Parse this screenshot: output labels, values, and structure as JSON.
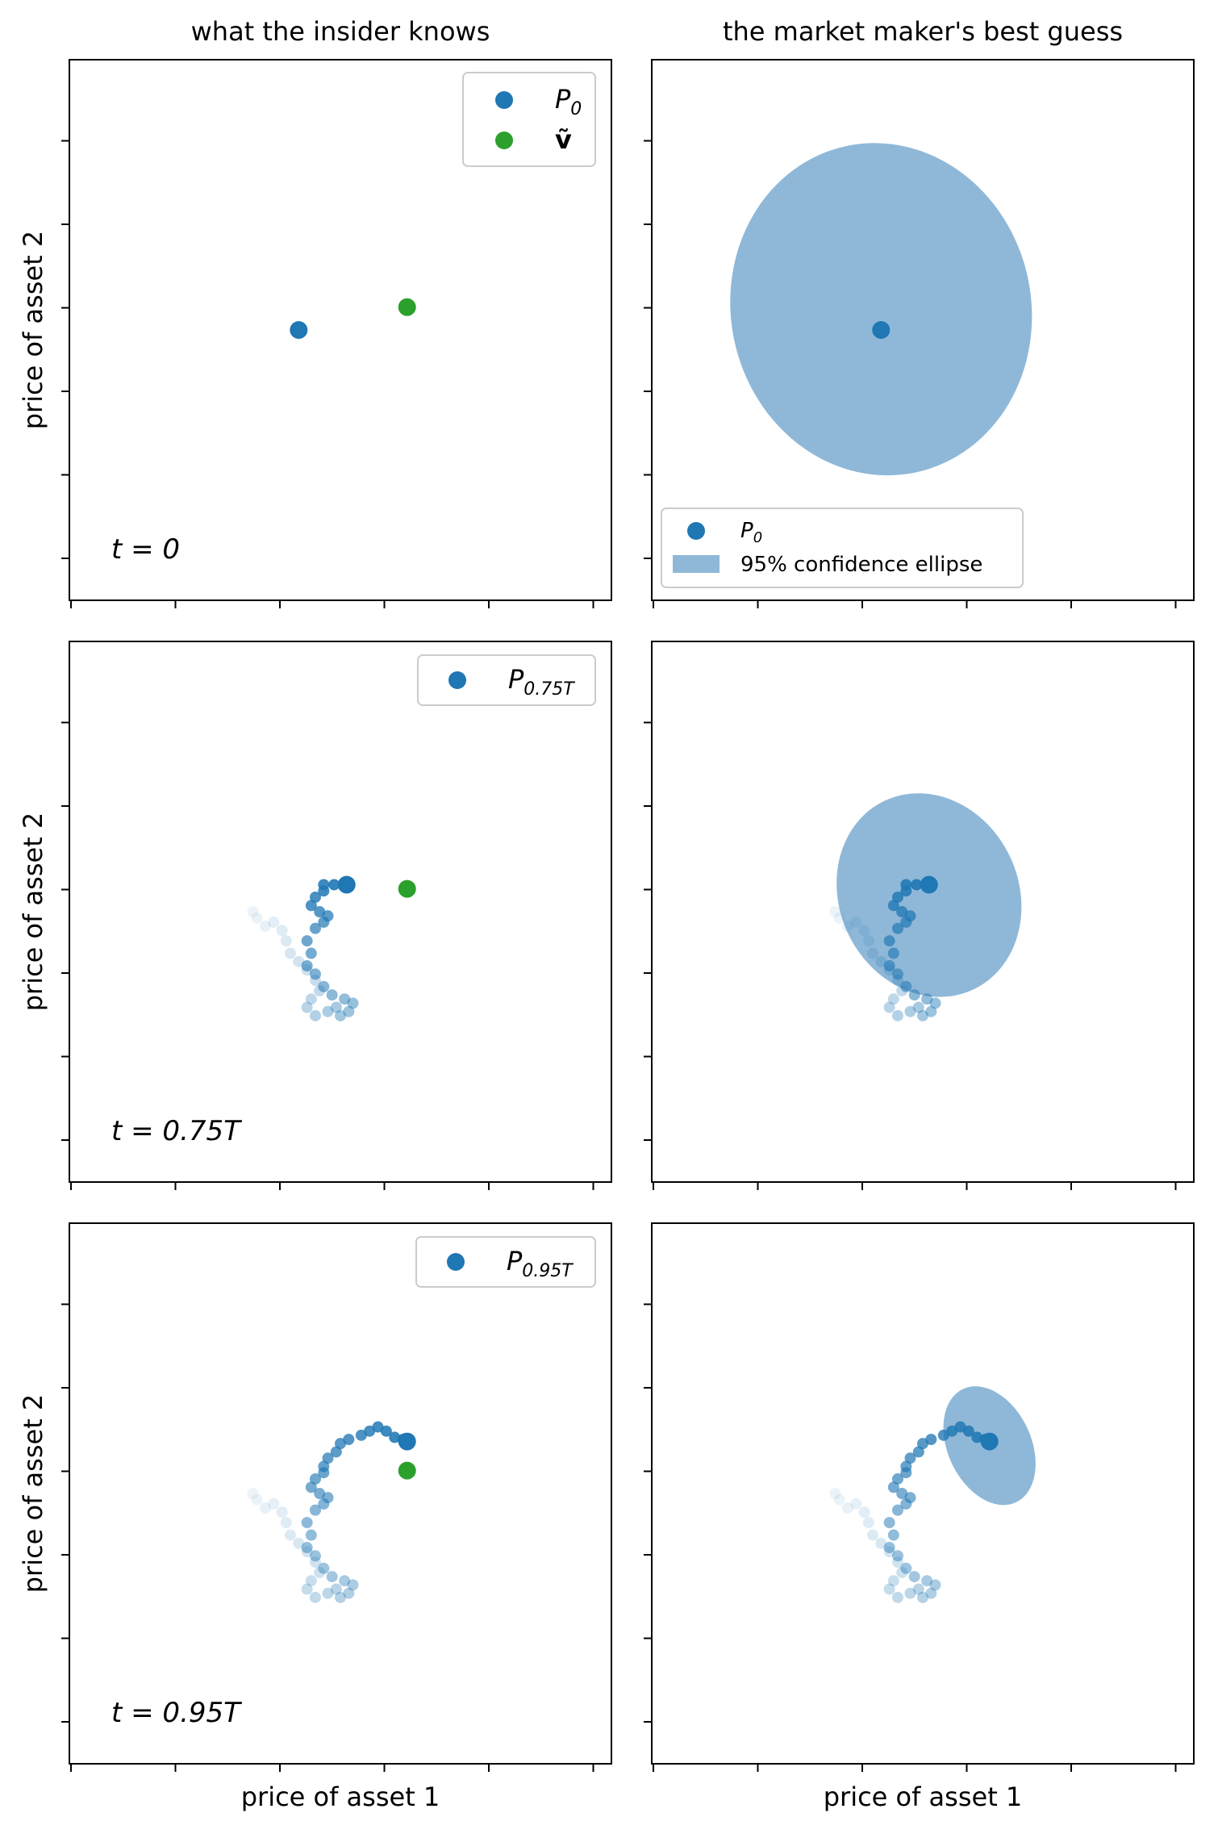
{
  "chart_data": [
    {
      "type": "scatter",
      "title": "what the insider knows",
      "xlabel": "",
      "ylabel": "price of asset 2",
      "grid": false,
      "legend_location": "top-right",
      "annotation": "t = 0",
      "price_label": "P",
      "price_subscript": "0",
      "value_label": "ṽ",
      "p": [
        0.0,
        0.0
      ],
      "v": [
        0.52,
        0.11
      ],
      "path": [],
      "colors": {
        "price": "#1f77b4",
        "value": "#2ca02c"
      }
    },
    {
      "type": "scatter",
      "title": "the market maker's best guess",
      "xlabel": "",
      "ylabel": "",
      "grid": false,
      "legend_location": "bottom-left",
      "price_label": "P",
      "price_subscript": "0",
      "ellipse_label": "95% confidence ellipse",
      "p": [
        0.0,
        0.0
      ],
      "ellipse": {
        "cx": 0.0,
        "cy": 0.1,
        "rx": 0.72,
        "ry": 0.8,
        "angle": -12
      },
      "path": [],
      "colors": {
        "price": "#1f77b4",
        "ellipse": "#8fb8d8"
      }
    },
    {
      "type": "scatter",
      "title": "",
      "xlabel": "",
      "ylabel": "price of asset 2",
      "grid": false,
      "legend_location": "top-right",
      "annotation": "t = 0.75T",
      "price_label": "P",
      "price_subscript": "0.75T",
      "p": [
        0.23,
        0.13
      ],
      "v": [
        0.52,
        0.11
      ],
      "path_id": "A",
      "colors": {
        "price": "#1f77b4",
        "value": "#2ca02c"
      }
    },
    {
      "type": "scatter",
      "title": "",
      "xlabel": "",
      "ylabel": "",
      "grid": false,
      "p": [
        0.23,
        0.13
      ],
      "ellipse": {
        "cx": 0.23,
        "cy": 0.08,
        "rx": 0.43,
        "ry": 0.5,
        "angle": -25
      },
      "path_id": "A",
      "colors": {
        "price": "#1f77b4",
        "ellipse": "#8fb8d8"
      }
    },
    {
      "type": "scatter",
      "title": "",
      "xlabel": "price of asset 1",
      "ylabel": "price of asset 2",
      "grid": false,
      "legend_location": "top-right",
      "annotation": "t = 0.95T",
      "price_label": "P",
      "price_subscript": "0.95T",
      "p": [
        0.52,
        0.25
      ],
      "v": [
        0.52,
        0.11
      ],
      "path_id": "B",
      "colors": {
        "price": "#1f77b4",
        "value": "#2ca02c"
      }
    },
    {
      "type": "scatter",
      "title": "",
      "xlabel": "price of asset 1",
      "ylabel": "",
      "grid": false,
      "p": [
        0.52,
        0.25
      ],
      "ellipse": {
        "cx": 0.52,
        "cy": 0.23,
        "rx": 0.2,
        "ry": 0.3,
        "angle": -25
      },
      "path_id": "B",
      "colors": {
        "price": "#1f77b4",
        "ellipse": "#8fb8d8"
      }
    }
  ],
  "paths": {
    "A": [
      [
        -0.22,
        0.0
      ],
      [
        -0.2,
        -0.03
      ],
      [
        -0.16,
        -0.07
      ],
      [
        -0.12,
        -0.05
      ],
      [
        -0.08,
        -0.09
      ],
      [
        -0.06,
        -0.14
      ],
      [
        -0.04,
        -0.2
      ],
      [
        0.0,
        -0.24
      ],
      [
        0.04,
        -0.28
      ],
      [
        0.08,
        -0.33
      ],
      [
        0.1,
        -0.38
      ],
      [
        0.06,
        -0.42
      ],
      [
        0.04,
        -0.46
      ],
      [
        0.08,
        -0.5
      ],
      [
        0.14,
        -0.48
      ],
      [
        0.18,
        -0.46
      ],
      [
        0.2,
        -0.5
      ],
      [
        0.24,
        -0.48
      ],
      [
        0.26,
        -0.44
      ],
      [
        0.22,
        -0.42
      ],
      [
        0.16,
        -0.4
      ],
      [
        0.12,
        -0.36
      ],
      [
        0.08,
        -0.3
      ],
      [
        0.04,
        -0.26
      ],
      [
        0.06,
        -0.2
      ],
      [
        0.04,
        -0.14
      ],
      [
        0.08,
        -0.08
      ],
      [
        0.12,
        -0.05
      ],
      [
        0.14,
        -0.02
      ],
      [
        0.1,
        0.0
      ],
      [
        0.06,
        0.03
      ],
      [
        0.08,
        0.07
      ],
      [
        0.12,
        0.1
      ],
      [
        0.12,
        0.13
      ],
      [
        0.17,
        0.13
      ],
      [
        0.23,
        0.13
      ]
    ],
    "B": [
      [
        -0.22,
        0.0
      ],
      [
        -0.2,
        -0.03
      ],
      [
        -0.16,
        -0.07
      ],
      [
        -0.12,
        -0.05
      ],
      [
        -0.08,
        -0.09
      ],
      [
        -0.06,
        -0.14
      ],
      [
        -0.04,
        -0.2
      ],
      [
        0.0,
        -0.24
      ],
      [
        0.04,
        -0.28
      ],
      [
        0.08,
        -0.33
      ],
      [
        0.1,
        -0.38
      ],
      [
        0.06,
        -0.42
      ],
      [
        0.04,
        -0.46
      ],
      [
        0.08,
        -0.5
      ],
      [
        0.14,
        -0.48
      ],
      [
        0.18,
        -0.46
      ],
      [
        0.2,
        -0.5
      ],
      [
        0.24,
        -0.48
      ],
      [
        0.26,
        -0.44
      ],
      [
        0.22,
        -0.42
      ],
      [
        0.16,
        -0.4
      ],
      [
        0.12,
        -0.36
      ],
      [
        0.08,
        -0.3
      ],
      [
        0.04,
        -0.26
      ],
      [
        0.06,
        -0.2
      ],
      [
        0.04,
        -0.14
      ],
      [
        0.08,
        -0.08
      ],
      [
        0.12,
        -0.05
      ],
      [
        0.14,
        -0.02
      ],
      [
        0.1,
        0.0
      ],
      [
        0.06,
        0.03
      ],
      [
        0.08,
        0.07
      ],
      [
        0.12,
        0.1
      ],
      [
        0.12,
        0.13
      ],
      [
        0.14,
        0.17
      ],
      [
        0.18,
        0.2
      ],
      [
        0.2,
        0.24
      ],
      [
        0.24,
        0.26
      ],
      [
        0.3,
        0.28
      ],
      [
        0.34,
        0.3
      ],
      [
        0.38,
        0.32
      ],
      [
        0.42,
        0.3
      ],
      [
        0.46,
        0.27
      ],
      [
        0.5,
        0.26
      ],
      [
        0.52,
        0.25
      ]
    ]
  }
}
